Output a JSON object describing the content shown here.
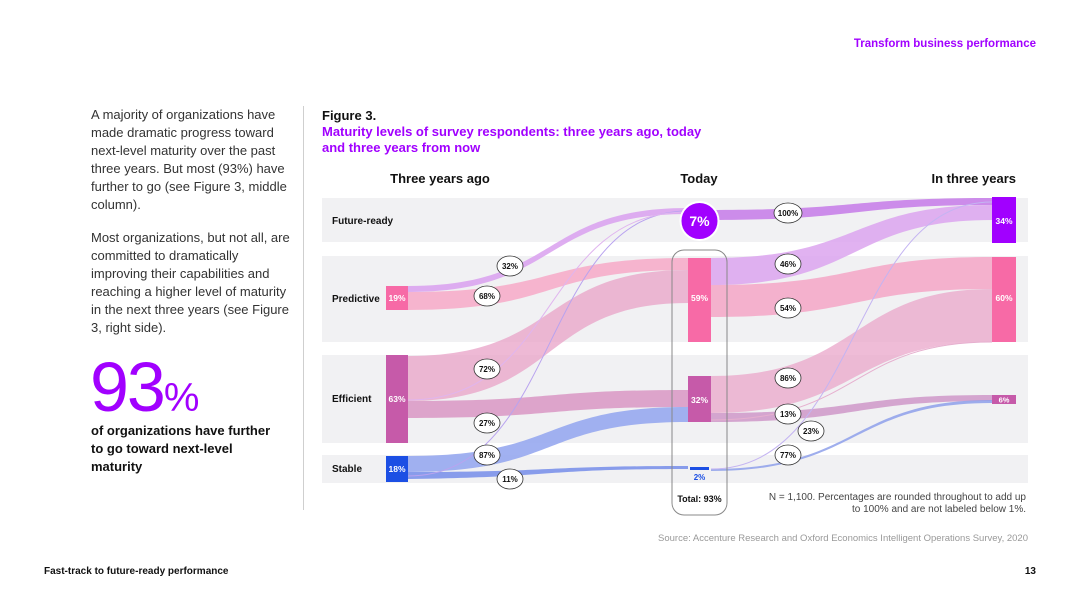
{
  "header": {
    "section_title": "Transform business performance"
  },
  "intro": {
    "paragraph1": "A majority of organizations have made dramatic progress toward next-level maturity over the past three years. But most (93%) have further to go (see Figure 3, middle column).",
    "paragraph2": "Most organizations, but not all, are committed to dramatically improving their capabilities and reaching a higher level of maturity in the next three years (see Figure 3, right side)."
  },
  "stat": {
    "number": "93",
    "unit": "%",
    "caption": "of organizations have further to go toward next-level maturity"
  },
  "figure": {
    "label": "Figure 3.",
    "title": "Maturity levels of survey respondents: three years ago, today and three years from now",
    "footnote": "N = 1,100. Percentages are rounded throughout to add up to 100% and are not labeled below 1%.",
    "source": "Source: Accenture Research and Oxford Economics Intelligent Operations Survey, 2020"
  },
  "chart_data": {
    "type": "sankey",
    "columns": [
      "Three years ago",
      "Today",
      "In three years"
    ],
    "levels": [
      "Future-ready",
      "Predictive",
      "Efficient",
      "Stable"
    ],
    "nodes": {
      "three_years_ago": {
        "Future-ready": null,
        "Predictive": "19%",
        "Efficient": "63%",
        "Stable": "18%"
      },
      "today": {
        "Future-ready": "7%",
        "Predictive": "59%",
        "Efficient": "32%",
        "Stable": "2%"
      },
      "in_three_years": {
        "Future-ready": "34%",
        "Predictive": "60%",
        "Efficient": "6%",
        "Stable": null
      }
    },
    "today_total_label": "Total: 93%",
    "flow_labels": {
      "ago_predictive": [
        "32%",
        "68%"
      ],
      "ago_efficient": [
        "72%",
        "27%"
      ],
      "ago_stable": [
        "87%",
        "11%"
      ],
      "today_future_ready": [
        "100%"
      ],
      "today_predictive": [
        "46%",
        "54%"
      ],
      "today_efficient": [
        "86%",
        "13%"
      ],
      "today_stable": [
        "23%",
        "77%"
      ]
    }
  },
  "footer": {
    "doc_title": "Fast-track to future-ready performance",
    "page_number": "13"
  }
}
